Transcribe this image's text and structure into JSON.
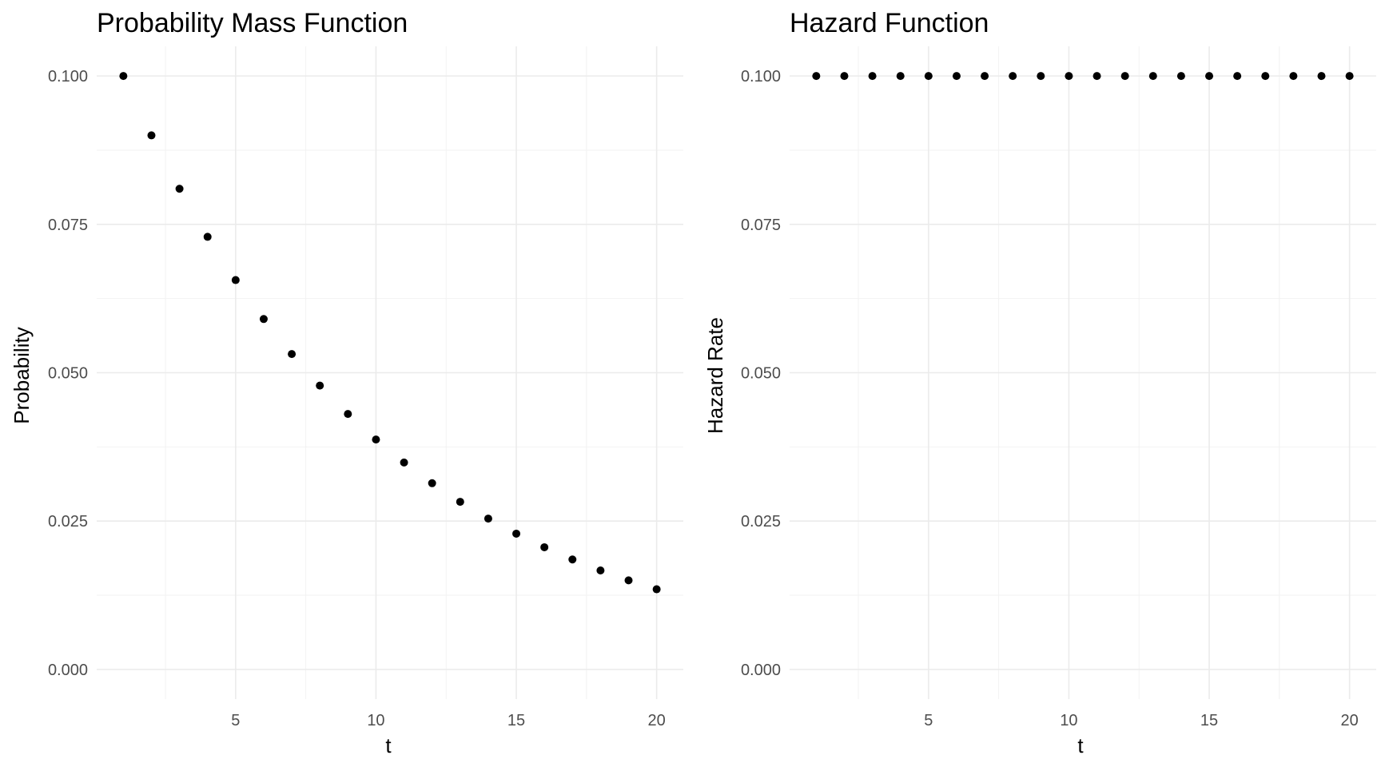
{
  "chart_data": [
    {
      "type": "scatter",
      "title": "Probability Mass Function",
      "xlabel": "t",
      "ylabel": "Probability",
      "xlim": [
        0.05,
        20.95
      ],
      "ylim": [
        -0.005,
        0.105
      ],
      "xticks": [
        5,
        10,
        15,
        20
      ],
      "yticks": [
        0.0,
        0.025,
        0.05,
        0.075,
        0.1
      ],
      "ytick_labels": [
        "0.000",
        "0.025",
        "0.050",
        "0.075",
        "0.100"
      ],
      "grid": true,
      "point_color": "#000000",
      "x": [
        1,
        2,
        3,
        4,
        5,
        6,
        7,
        8,
        9,
        10,
        11,
        12,
        13,
        14,
        15,
        16,
        17,
        18,
        19,
        20
      ],
      "y": [
        0.1,
        0.09,
        0.081,
        0.0729,
        0.06561,
        0.059049,
        0.0531441,
        0.04782969,
        0.043046721,
        0.0387420489,
        0.03486784401,
        0.031381059609,
        0.0282429536481,
        0.02541865828329,
        0.022876792454961,
        0.0205891132094649,
        0.0185302018885184,
        0.0166771816996666,
        0.0150094635296999,
        0.0135085171767299
      ]
    },
    {
      "type": "scatter",
      "title": "Hazard Function",
      "xlabel": "t",
      "ylabel": "Hazard Rate",
      "xlim": [
        0.05,
        20.95
      ],
      "ylim": [
        -0.005,
        0.105
      ],
      "xticks": [
        5,
        10,
        15,
        20
      ],
      "yticks": [
        0.0,
        0.025,
        0.05,
        0.075,
        0.1
      ],
      "ytick_labels": [
        "0.000",
        "0.025",
        "0.050",
        "0.075",
        "0.100"
      ],
      "grid": true,
      "point_color": "#000000",
      "x": [
        1,
        2,
        3,
        4,
        5,
        6,
        7,
        8,
        9,
        10,
        11,
        12,
        13,
        14,
        15,
        16,
        17,
        18,
        19,
        20
      ],
      "y": [
        0.1,
        0.1,
        0.1,
        0.1,
        0.1,
        0.1,
        0.1,
        0.1,
        0.1,
        0.1,
        0.1,
        0.1,
        0.1,
        0.1,
        0.1,
        0.1,
        0.1,
        0.1,
        0.1,
        0.1
      ]
    }
  ]
}
